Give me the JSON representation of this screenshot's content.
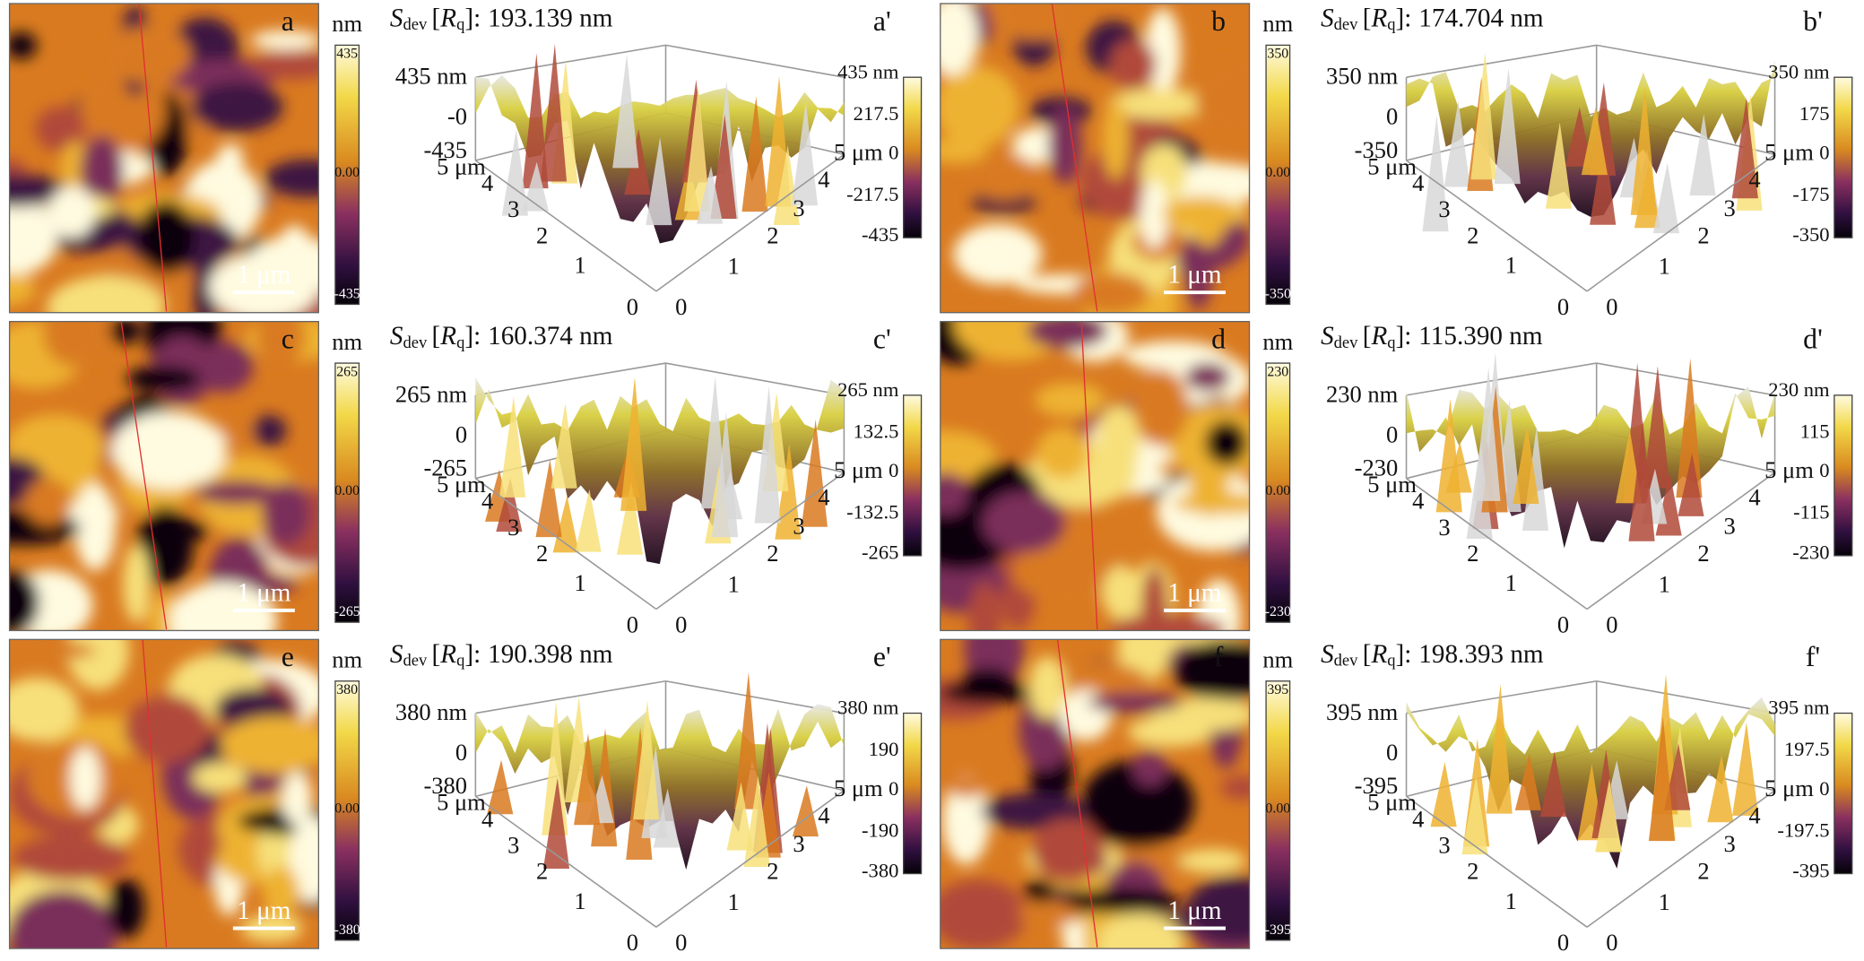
{
  "common": {
    "unit": "nm",
    "scale_bar": "1 μm",
    "sdev_symbol": "S",
    "sdev_sub": "dev",
    "rq_open": "[",
    "rq_symbol": "R",
    "rq_sub": "q",
    "rq_close": "]:",
    "axis_3d_left": [
      "5 μm",
      "4",
      "3",
      "2",
      "1",
      "0"
    ],
    "axis_3d_right": [
      "0",
      "1",
      "2",
      "3",
      "4",
      "5 μm"
    ]
  },
  "panels": [
    {
      "label": "a",
      "label_3d": "a'",
      "colorbar_2d": [
        "435",
        "0.00",
        "-435"
      ],
      "sdev_value": "193.139 nm",
      "z_labels": [
        "435 nm",
        "-0",
        "-435"
      ],
      "colorbar_3d": [
        "435 nm",
        "217.5",
        "0",
        "-217.5",
        "-435"
      ]
    },
    {
      "label": "b",
      "label_3d": "b'",
      "colorbar_2d": [
        "350",
        "0.00",
        "-350"
      ],
      "sdev_value": "174.704 nm",
      "z_labels": [
        "350 nm",
        "0",
        "-350"
      ],
      "colorbar_3d": [
        "350 nm",
        "175",
        "0",
        "-175",
        "-350"
      ]
    },
    {
      "label": "c",
      "label_3d": "c'",
      "colorbar_2d": [
        "265",
        "0.00",
        "-265"
      ],
      "sdev_value": "160.374 nm",
      "z_labels": [
        "265 nm",
        "0",
        "-265"
      ],
      "colorbar_3d": [
        "265 nm",
        "132.5",
        "0",
        "-132.5",
        "-265"
      ]
    },
    {
      "label": "d",
      "label_3d": "d'",
      "colorbar_2d": [
        "230",
        "0.00",
        "-230"
      ],
      "sdev_value": "115.390 nm",
      "z_labels": [
        "230 nm",
        "0",
        "-230"
      ],
      "colorbar_3d": [
        "230 nm",
        "115",
        "0",
        "-115",
        "-230"
      ]
    },
    {
      "label": "e",
      "label_3d": "e'",
      "colorbar_2d": [
        "380",
        "0.00",
        "-380"
      ],
      "sdev_value": "190.398 nm",
      "z_labels": [
        "380 nm",
        "0",
        "-380"
      ],
      "colorbar_3d": [
        "380 nm",
        "190",
        "0",
        "-190",
        "-380"
      ]
    },
    {
      "label": "f",
      "label_3d": "f'",
      "colorbar_2d": [
        "395",
        "0.00",
        "-395"
      ],
      "sdev_value": "198.393 nm",
      "z_labels": [
        "395 nm",
        "0",
        "-395"
      ],
      "colorbar_3d": [
        "395 nm",
        "197.5",
        "0",
        "-197.5",
        "-395"
      ]
    }
  ]
}
